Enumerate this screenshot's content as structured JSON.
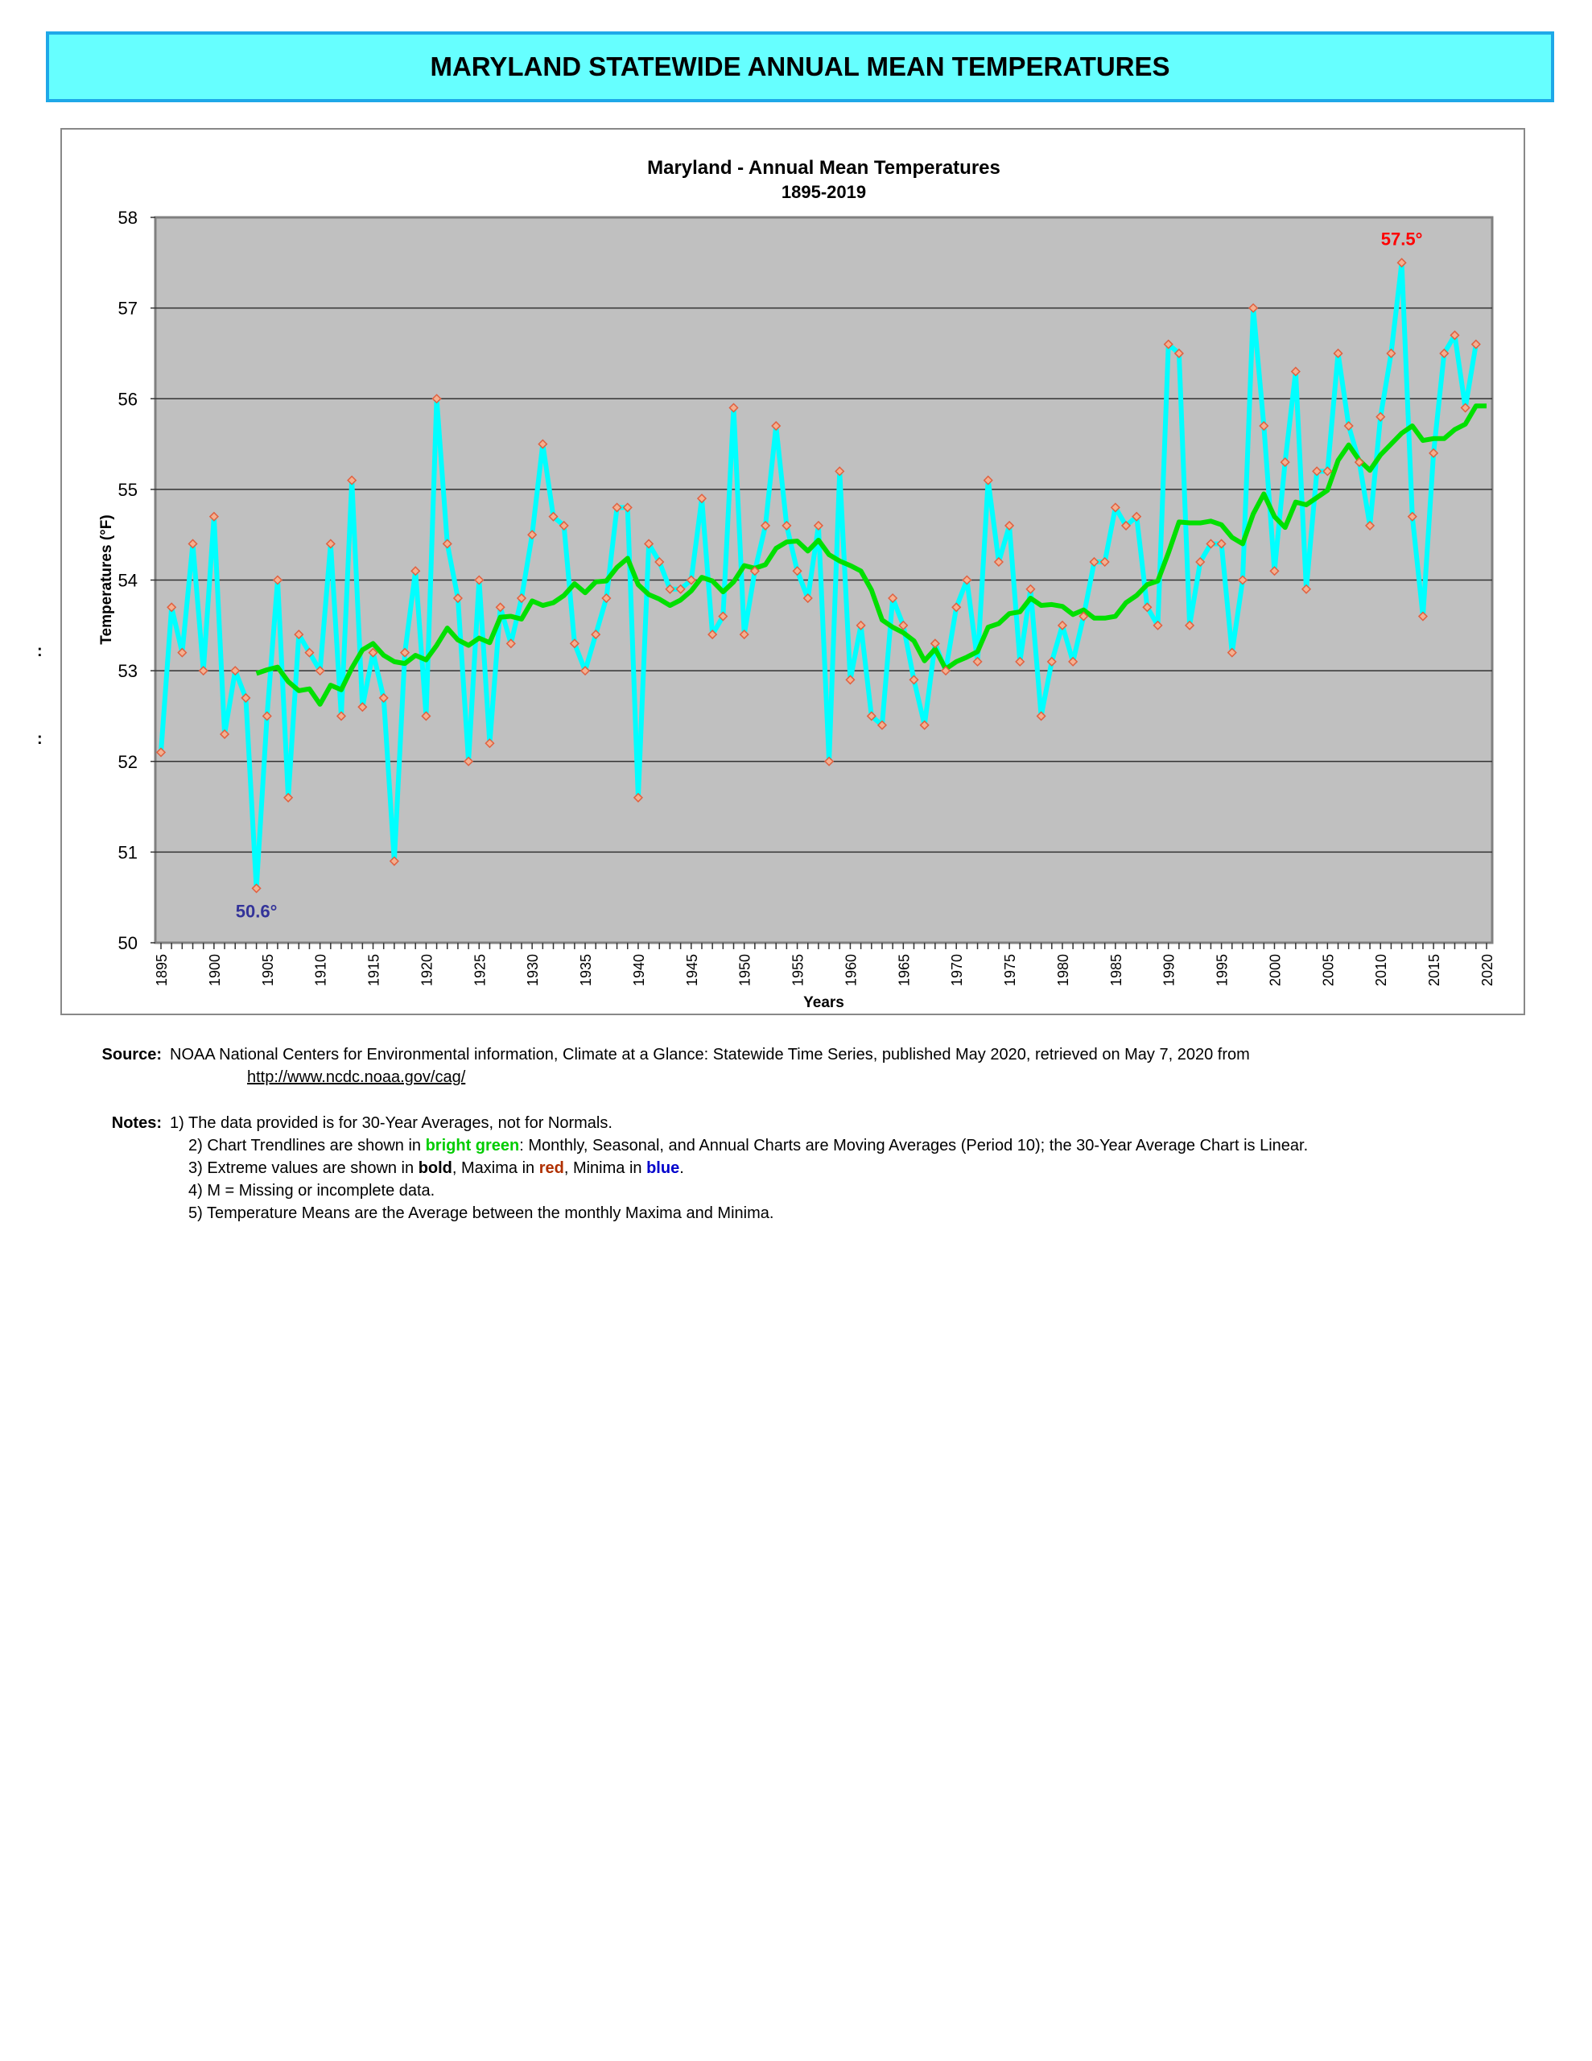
{
  "banner_title": "MARYLAND STATEWIDE ANNUAL MEAN TEMPERATURES",
  "chart_data": {
    "type": "line",
    "title": "Maryland - Annual Mean Temperatures",
    "subtitle": "1895-2019",
    "xlabel": "Years",
    "ylabel": "Temperatures (°F)",
    "ylim": [
      50,
      58
    ],
    "xlim": [
      1895,
      2020
    ],
    "yticks": [
      "50",
      "51",
      "52",
      "53",
      "54",
      "55",
      "56",
      "57",
      "58"
    ],
    "xticks": [
      "1895",
      "1900",
      "1905",
      "1910",
      "1915",
      "1920",
      "1925",
      "1930",
      "1935",
      "1940",
      "1945",
      "1950",
      "1955",
      "1960",
      "1965",
      "1970",
      "1975",
      "1980",
      "1985",
      "1990",
      "1995",
      "2000",
      "2005",
      "2010",
      "2015",
      "2020"
    ],
    "grid": true,
    "background": "#C0C0C0",
    "series": [
      {
        "color": "#00FFFF",
        "marker_color": "#E06040",
        "x_start": 1895,
        "values": [
          52.1,
          53.7,
          53.2,
          54.4,
          53.0,
          54.7,
          52.3,
          53.0,
          52.7,
          50.6,
          52.5,
          54.0,
          51.6,
          53.4,
          53.2,
          53.0,
          54.4,
          52.5,
          55.1,
          52.6,
          53.2,
          52.7,
          50.9,
          53.2,
          54.1,
          52.5,
          56.0,
          54.4,
          53.8,
          52.0,
          54.0,
          52.2,
          53.7,
          53.3,
          53.8,
          54.5,
          55.5,
          54.7,
          54.6,
          53.3,
          53.0,
          53.4,
          53.8,
          54.8,
          54.8,
          51.6,
          54.4,
          54.2,
          53.9,
          53.9,
          54.0,
          54.9,
          53.4,
          53.6,
          55.9,
          53.4,
          54.1,
          54.6,
          55.7,
          54.6,
          54.1,
          53.8,
          54.6,
          52.0,
          55.2,
          52.9,
          53.5,
          52.5,
          52.4,
          53.8,
          53.5,
          52.9,
          52.4,
          53.3,
          53.0,
          53.7,
          54.0,
          53.1,
          55.1,
          54.2,
          54.6,
          53.1,
          53.9,
          52.5,
          53.1,
          53.5,
          53.1,
          53.6,
          54.2,
          54.2,
          54.8,
          54.6,
          54.7,
          53.7,
          53.5,
          56.6,
          56.5,
          53.5,
          54.2,
          54.4,
          54.4,
          53.2,
          54.0,
          57.0,
          55.7,
          54.1,
          55.3,
          56.3,
          53.9,
          55.2,
          55.2,
          56.5,
          55.7,
          55.3,
          54.6,
          55.8,
          56.5,
          57.5,
          54.7,
          53.6,
          55.4,
          56.5,
          56.7,
          55.9,
          56.6
        ]
      },
      {
        "color": "#00E000",
        "trendline": "moving average",
        "period": 10
      }
    ],
    "annotations": [
      {
        "text": "57.5°",
        "year": 2012,
        "color": "#FF0000"
      },
      {
        "text": "50.6°",
        "year": 1904,
        "color": "#333399"
      }
    ]
  },
  "source": {
    "label": "Source:",
    "text": "NOAA National Centers for Environmental information, Climate at a Glance: Statewide Time Series, published May 2020, retrieved on May 7, 2020 from",
    "link": "http://www.ncdc.noaa.gov/cag/"
  },
  "notes": {
    "label": "Notes:",
    "n1": "1) The data provided is for 30-Year Averages, not for Normals.",
    "n2a": "2) Chart Trendlines are shown in ",
    "n2b": "bright green",
    "n2c": ": Monthly, Seasonal, and Annual Charts are Moving Averages (Period 10); the 30-Year Average Chart is Linear.",
    "n3a": "3) Extreme values are shown in ",
    "n3b": "bold",
    "n3c": ", Maxima in ",
    "n3d": "red",
    "n3e": ", Minima in ",
    "n3f": "blue",
    "n3g": ".",
    "n4": "4) M = Missing or incomplete data.",
    "n5": "5) Temperature Means are the Average between the monthly Maxima and Minima."
  },
  "colons": [
    ":",
    ":"
  ]
}
